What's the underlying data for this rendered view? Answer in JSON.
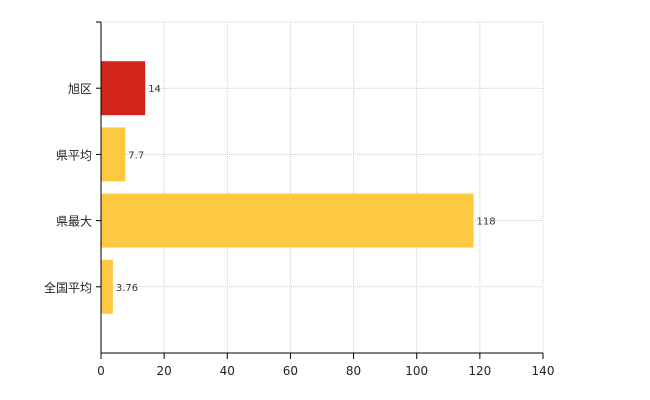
{
  "chart_data": {
    "type": "bar",
    "orientation": "horizontal",
    "categories": [
      "旭区",
      "県平均",
      "県最大",
      "全国平均"
    ],
    "values": [
      14,
      7.7,
      118,
      3.76
    ],
    "value_labels": [
      "14",
      "7.7",
      "118",
      "3.76"
    ],
    "highlight": "旭区",
    "xlim": [
      0,
      140
    ],
    "xticks": [
      0,
      20,
      40,
      60,
      80,
      100,
      120,
      140
    ],
    "grid": true,
    "legend": "none"
  },
  "colors": {
    "highlight_bar": "#d1241a",
    "default_bar": "#fdc940",
    "grid": "#cccccc",
    "axis": "#000000"
  }
}
